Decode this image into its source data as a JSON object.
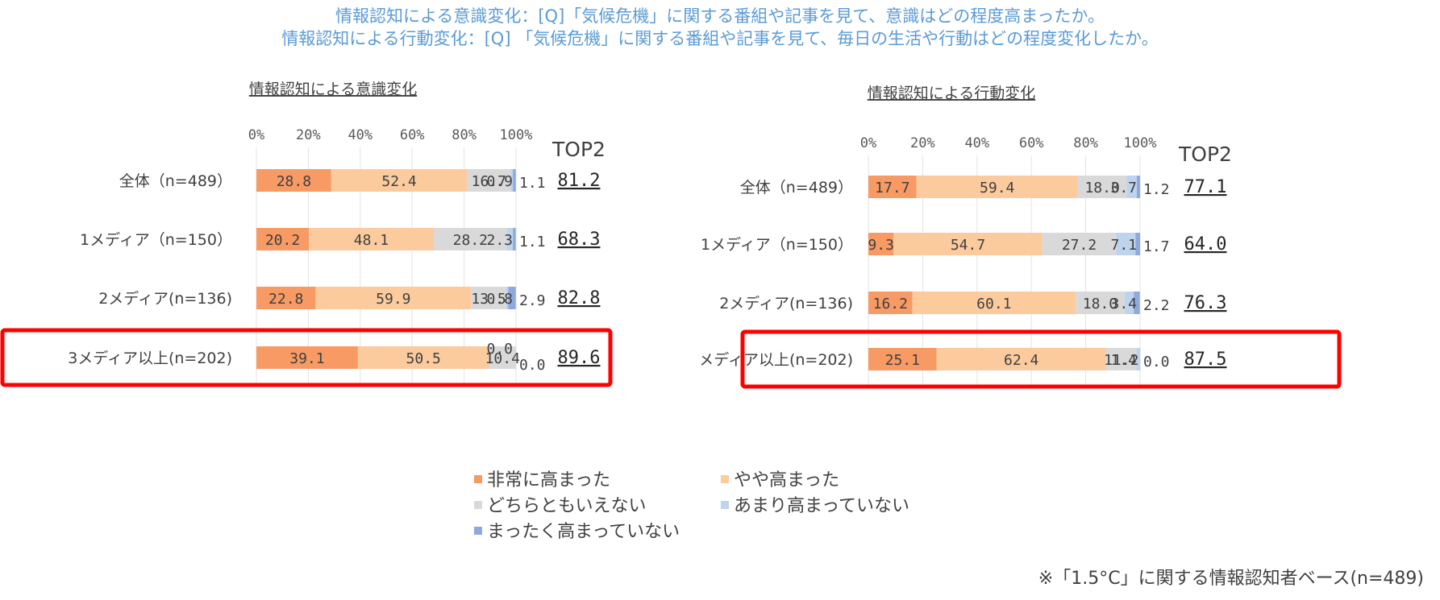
{
  "titles": {
    "line1": "情報認知による意識変化：[Q]「気候危機」に関する番組や記事を見て、意識はどの程度高まったか。",
    "line2": "情報認知による行動変化：[Q] 「気候危機」に関する番組や記事を見て、毎日の生活や行動はどの程度変化したか。"
  },
  "legend": {
    "items": [
      {
        "label": "非常に高まった",
        "color": "#F79A64"
      },
      {
        "label": "やや高まった",
        "color": "#FBCB9E"
      },
      {
        "label": "どちらともいえない",
        "color": "#D9D9D9"
      },
      {
        "label": "あまり高まっていない",
        "color": "#BDD3EE"
      },
      {
        "label": "まったく高まっていない",
        "color": "#8EAADB"
      }
    ]
  },
  "footnote": "※「1.5°C」に関する情報認知者ベース(n=489)",
  "chart_data": [
    {
      "type": "bar",
      "stacked": true,
      "orientation": "horizontal",
      "title": "情報認知による意識変化",
      "x_ticks": [
        "0%",
        "20%",
        "40%",
        "60%",
        "80%",
        "100%"
      ],
      "xlim": [
        0,
        100
      ],
      "categories": [
        "全体（n=489）",
        "1メディア（n=150）",
        "2メディア(n=136)",
        "3メディア以上(n=202)"
      ],
      "series": [
        {
          "name": "非常に高まった",
          "values": [
            28.8,
            20.2,
            22.8,
            39.1
          ]
        },
        {
          "name": "やや高まった",
          "values": [
            52.4,
            48.1,
            59.9,
            50.5
          ]
        },
        {
          "name": "どちらともいえない",
          "values": [
            16.7,
            28.2,
            13.5,
            10.4
          ]
        },
        {
          "name": "あまり高まっていない",
          "values": [
            0.9,
            2.3,
            0.8,
            0.0
          ]
        },
        {
          "name": "まったく高まっていない",
          "values": [
            1.1,
            1.1,
            2.9,
            0.0
          ]
        }
      ],
      "top2_header": "TOP2",
      "top2": [
        "81.2",
        "68.3",
        "82.8",
        "89.6"
      ],
      "highlighted_category": "3メディア以上(n=202)"
    },
    {
      "type": "bar",
      "stacked": true,
      "orientation": "horizontal",
      "title": "情報認知による行動変化",
      "x_ticks": [
        "0%",
        "20%",
        "40%",
        "60%",
        "80%",
        "100%"
      ],
      "xlim": [
        0,
        100
      ],
      "categories": [
        "全体（n=489）",
        "1メディア（n=150）",
        "2メディア(n=136)",
        "3メディア以上(n=202)"
      ],
      "series": [
        {
          "name": "非常に高まった",
          "values": [
            17.7,
            9.3,
            16.2,
            25.1
          ]
        },
        {
          "name": "やや高まった",
          "values": [
            59.4,
            54.7,
            60.1,
            62.4
          ]
        },
        {
          "name": "どちらともいえない",
          "values": [
            18.0,
            27.2,
            18.0,
            11.2
          ]
        },
        {
          "name": "あまり高まっていない",
          "values": [
            3.7,
            7.1,
            3.4,
            1.4
          ]
        },
        {
          "name": "まったく高まっていない",
          "values": [
            1.2,
            1.7,
            2.2,
            0.0
          ]
        }
      ],
      "top2_header": "TOP2",
      "top2": [
        "77.1",
        "64.0",
        "76.3",
        "87.5"
      ],
      "highlighted_category": "3メディア以上(n=202)"
    }
  ]
}
